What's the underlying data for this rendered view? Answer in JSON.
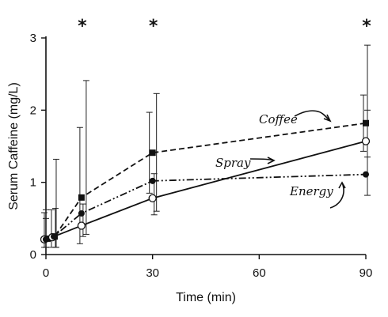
{
  "chart_data": {
    "type": "line",
    "xlabel": "Time (min)",
    "ylabel": "Serum Caffeine (mg/L)",
    "xlim": [
      0,
      90
    ],
    "ylim": [
      0,
      3
    ],
    "xticks": [
      0,
      30,
      60,
      90
    ],
    "yticks": [
      0,
      1,
      2,
      3
    ],
    "grid": false,
    "legend": "inline labels with arrows",
    "significance_marker": "*",
    "significant_times": [
      10,
      30,
      90
    ],
    "series": [
      {
        "name": "Coffee",
        "line_style": "dashed",
        "marker": "filled-square",
        "x": [
          0,
          2,
          10,
          30,
          90
        ],
        "y": [
          0.22,
          0.25,
          0.79,
          1.41,
          1.82
        ],
        "err_upper": [
          0.62,
          1.32,
          1.76,
          1.97,
          2.21
        ],
        "err_lower": [
          0.1,
          0.1,
          0.15,
          0.85,
          1.43
        ]
      },
      {
        "name": "Spray",
        "line_style": "solid",
        "marker": "open-circle",
        "x": [
          0,
          2,
          10,
          30,
          90
        ],
        "y": [
          0.21,
          0.24,
          0.4,
          0.78,
          1.57
        ],
        "err_upper": [
          0.5,
          0.62,
          0.7,
          1.12,
          2.0
        ],
        "err_lower": [
          0.1,
          0.1,
          0.25,
          0.55,
          1.35
        ]
      },
      {
        "name": "Energy",
        "line_style": "dash-dot-dot",
        "marker": "filled-circle",
        "x": [
          0,
          2,
          10,
          30,
          90
        ],
        "y": [
          0.21,
          0.25,
          0.57,
          1.02,
          1.11
        ],
        "err_upper": [
          0.58,
          0.64,
          2.41,
          2.23,
          2.9
        ],
        "err_lower": [
          0.1,
          0.1,
          0.28,
          0.6,
          0.82
        ]
      }
    ]
  }
}
